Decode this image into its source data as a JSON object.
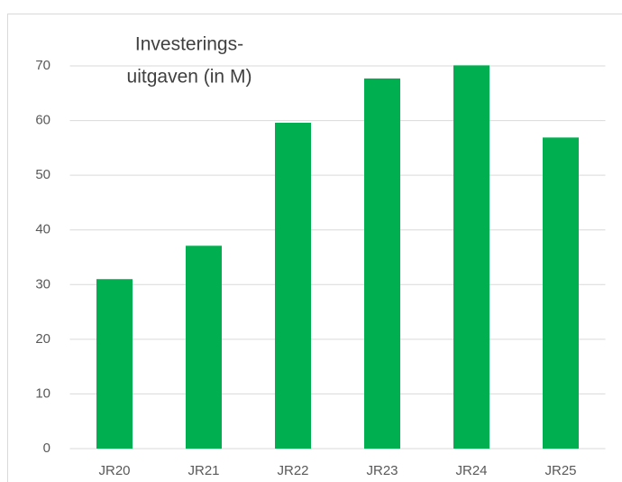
{
  "chart_data": {
    "type": "bar",
    "title": [
      "Investerings-",
      "uitgaven (in M)"
    ],
    "categories": [
      "JR20",
      "JR21",
      "JR22",
      "JR23",
      "JR24",
      "JR25"
    ],
    "values": [
      31,
      37.1,
      59.6,
      67.7,
      70.1,
      56.9
    ],
    "color": "#00b050",
    "ylim": [
      0,
      70
    ],
    "yticks": [
      0,
      10,
      20,
      30,
      40,
      50,
      60,
      70
    ],
    "grid": true
  }
}
